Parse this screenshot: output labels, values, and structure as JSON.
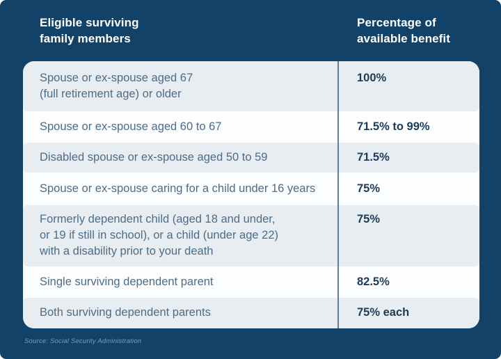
{
  "panel": {
    "background_color": "#134268",
    "header": {
      "left_lines": [
        "Eligible surviving",
        "family members"
      ],
      "right_lines": [
        "Percentage of",
        "available benefit"
      ]
    },
    "source_note": "Source: Social Security Administration"
  },
  "table": {
    "accent_divider_color": "#5b7ea0",
    "light_row_color": "#e8edf2",
    "white_row_color": "#fcfdfe",
    "value_text_color": "#1c3b59",
    "member_text_color": "#4c6c89",
    "rows": [
      {
        "member": [
          "Spouse or ex-spouse aged 67",
          "(full retirement age) or older"
        ],
        "benefit": "100%"
      },
      {
        "member": [
          "Spouse or ex-spouse aged 60 to 67"
        ],
        "benefit": "71.5% to 99%"
      },
      {
        "member": [
          "Disabled spouse or ex-spouse aged 50 to 59"
        ],
        "benefit": "71.5%"
      },
      {
        "member": [
          "Spouse or ex-spouse caring for a child under 16 years"
        ],
        "benefit": "75%"
      },
      {
        "member": [
          "Formerly dependent child (aged 18 and under,",
          "or 19 if still in school), or a child (under age 22)",
          "with a disability prior to your death"
        ],
        "benefit": "75%"
      },
      {
        "member": [
          "Single surviving dependent parent"
        ],
        "benefit": "82.5%"
      },
      {
        "member": [
          "Both surviving dependent parents"
        ],
        "benefit": "75% each"
      }
    ]
  },
  "chart_data": {
    "type": "table",
    "title": "",
    "columns": [
      "Eligible surviving family members",
      "Percentage of available benefit"
    ],
    "rows": [
      [
        "Spouse or ex-spouse aged 67 (full retirement age) or older",
        "100%"
      ],
      [
        "Spouse or ex-spouse aged 60 to 67",
        "71.5% to 99%"
      ],
      [
        "Disabled spouse or ex-spouse aged 50 to 59",
        "71.5%"
      ],
      [
        "Spouse or ex-spouse caring for a child under 16 years",
        "75%"
      ],
      [
        "Formerly dependent child (aged 18 and under, or 19 if still in school), or a child (under age 22) with a disability prior to your death",
        "75%"
      ],
      [
        "Single surviving dependent parent",
        "82.5%"
      ],
      [
        "Both surviving dependent parents",
        "75% each"
      ]
    ],
    "source": "Source: Social Security Administration",
    "layout": {
      "alternating_rows": true,
      "first_row_shaded": true,
      "column_divider": true
    }
  }
}
